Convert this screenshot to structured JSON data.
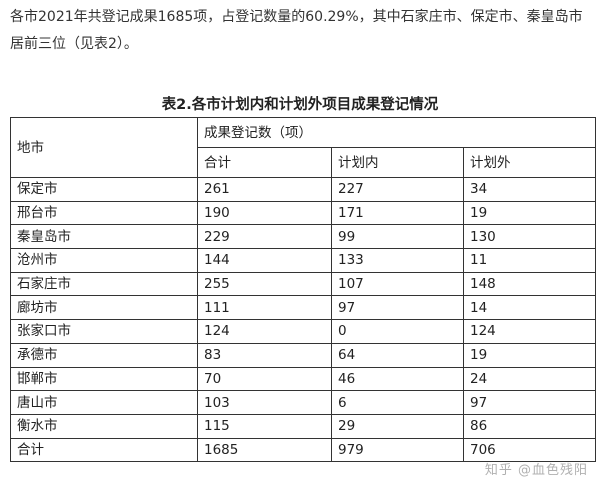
{
  "paragraph": "各市2021年共登记成果1685项，占登记数量的60.29%，其中石家庄市、保定市、秦皇岛市居前三位（见表2）。",
  "table": {
    "title": "表2.各市计划内和计划外项目成果登记情况",
    "header_city": "地市",
    "header_group": "成果登记数（项）",
    "columns": [
      "合计",
      "计划内",
      "计划外"
    ],
    "rows": [
      [
        "保定市",
        "261",
        "227",
        "34"
      ],
      [
        "邢台市",
        "190",
        "171",
        "19"
      ],
      [
        "秦皇岛市",
        "229",
        "99",
        "130"
      ],
      [
        "沧州市",
        "144",
        "133",
        "11"
      ],
      [
        "石家庄市",
        "255",
        "107",
        "148"
      ],
      [
        "廊坊市",
        "111",
        "97",
        "14"
      ],
      [
        "张家口市",
        "124",
        "0",
        "124"
      ],
      [
        "承德市",
        "83",
        "64",
        "19"
      ],
      [
        "邯郸市",
        "70",
        "46",
        "24"
      ],
      [
        "唐山市",
        "103",
        "6",
        "97"
      ],
      [
        "衡水市",
        "115",
        "29",
        "86"
      ],
      [
        "合计",
        "1685",
        "979",
        "706"
      ]
    ]
  },
  "watermark": "知乎 @血色残阳"
}
